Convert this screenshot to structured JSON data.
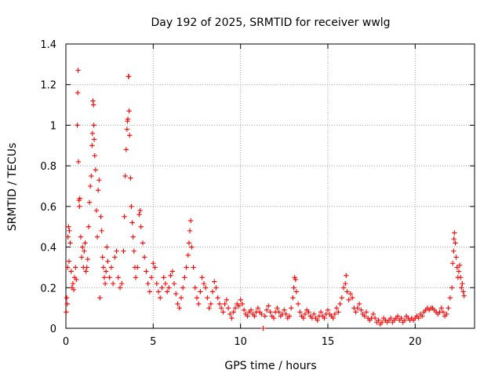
{
  "chart_data": {
    "type": "scatter",
    "title": "Day 192 of 2025, SRMTID for receiver wwlg",
    "xlabel": "GPS time / hours",
    "ylabel": "SRMTID / TECUs",
    "xlim": [
      0,
      23.4
    ],
    "ylim": [
      0,
      1.4
    ],
    "xticks": [
      0,
      5,
      10,
      15,
      20
    ],
    "yticks": [
      0,
      0.2,
      0.4,
      0.6,
      0.8,
      1,
      1.2,
      1.4
    ],
    "xtick_labels": [
      "0",
      "5",
      "10",
      "15",
      "20"
    ],
    "ytick_labels": [
      "0",
      "0.2",
      "0.4",
      "0.6",
      "0.8",
      "1",
      "1.2",
      "1.4"
    ],
    "grid": true,
    "marker": "+",
    "color": "#ff0000",
    "series": [
      {
        "name": "SRMTID",
        "points": [
          [
            0.02,
            0.08
          ],
          [
            0.05,
            0.15
          ],
          [
            0.08,
            0.12
          ],
          [
            0.1,
            0.3
          ],
          [
            0.12,
            0.45
          ],
          [
            0.15,
            0.5
          ],
          [
            0.18,
            0.33
          ],
          [
            0.2,
            0.48
          ],
          [
            0.25,
            0.42
          ],
          [
            0.3,
            0.28
          ],
          [
            0.35,
            0.2
          ],
          [
            0.4,
            0.22
          ],
          [
            0.45,
            0.19
          ],
          [
            0.5,
            0.25
          ],
          [
            0.55,
            0.3
          ],
          [
            0.6,
            0.24
          ],
          [
            0.65,
            1.0
          ],
          [
            0.68,
            1.16
          ],
          [
            0.7,
            1.27
          ],
          [
            0.72,
            0.82
          ],
          [
            0.75,
            0.63
          ],
          [
            0.78,
            0.6
          ],
          [
            0.8,
            0.64
          ],
          [
            0.85,
            0.45
          ],
          [
            0.9,
            0.35
          ],
          [
            0.95,
            0.4
          ],
          [
            1.0,
            0.3
          ],
          [
            1.05,
            0.38
          ],
          [
            1.1,
            0.42
          ],
          [
            1.15,
            0.28
          ],
          [
            1.2,
            0.3
          ],
          [
            1.25,
            0.34
          ],
          [
            1.3,
            0.5
          ],
          [
            1.35,
            0.62
          ],
          [
            1.4,
            0.7
          ],
          [
            1.45,
            0.75
          ],
          [
            1.5,
            0.9
          ],
          [
            1.52,
            0.96
          ],
          [
            1.55,
            1.12
          ],
          [
            1.58,
            1.1
          ],
          [
            1.6,
            1.0
          ],
          [
            1.62,
            0.93
          ],
          [
            1.65,
            0.85
          ],
          [
            1.7,
            0.78
          ],
          [
            1.75,
            0.58
          ],
          [
            1.8,
            0.45
          ],
          [
            1.85,
            0.68
          ],
          [
            1.9,
            0.73
          ],
          [
            1.95,
            0.15
          ],
          [
            2.0,
            0.55
          ],
          [
            2.05,
            0.48
          ],
          [
            2.1,
            0.35
          ],
          [
            2.15,
            0.3
          ],
          [
            2.2,
            0.25
          ],
          [
            2.25,
            0.22
          ],
          [
            2.3,
            0.28
          ],
          [
            2.35,
            0.4
          ],
          [
            2.4,
            0.33
          ],
          [
            2.5,
            0.25
          ],
          [
            2.6,
            0.3
          ],
          [
            2.7,
            0.22
          ],
          [
            2.8,
            0.35
          ],
          [
            2.9,
            0.38
          ],
          [
            3.0,
            0.25
          ],
          [
            3.1,
            0.2
          ],
          [
            3.2,
            0.22
          ],
          [
            3.3,
            0.38
          ],
          [
            3.35,
            0.55
          ],
          [
            3.4,
            0.75
          ],
          [
            3.45,
            0.88
          ],
          [
            3.5,
            0.98
          ],
          [
            3.52,
            1.02
          ],
          [
            3.55,
            1.03
          ],
          [
            3.58,
            1.24
          ],
          [
            3.6,
            1.24
          ],
          [
            3.62,
            1.07
          ],
          [
            3.65,
            0.95
          ],
          [
            3.7,
            0.74
          ],
          [
            3.75,
            0.6
          ],
          [
            3.8,
            0.52
          ],
          [
            3.85,
            0.45
          ],
          [
            3.9,
            0.38
          ],
          [
            3.95,
            0.3
          ],
          [
            4.0,
            0.25
          ],
          [
            4.1,
            0.3
          ],
          [
            4.2,
            0.56
          ],
          [
            4.25,
            0.58
          ],
          [
            4.3,
            0.5
          ],
          [
            4.4,
            0.42
          ],
          [
            4.5,
            0.35
          ],
          [
            4.6,
            0.28
          ],
          [
            4.7,
            0.22
          ],
          [
            4.8,
            0.18
          ],
          [
            4.9,
            0.25
          ],
          [
            5.0,
            0.32
          ],
          [
            5.1,
            0.3
          ],
          [
            5.2,
            0.22
          ],
          [
            5.3,
            0.18
          ],
          [
            5.4,
            0.15
          ],
          [
            5.5,
            0.2
          ],
          [
            5.6,
            0.25
          ],
          [
            5.7,
            0.22
          ],
          [
            5.8,
            0.18
          ],
          [
            5.9,
            0.2
          ],
          [
            6.0,
            0.26
          ],
          [
            6.1,
            0.28
          ],
          [
            6.2,
            0.22
          ],
          [
            6.3,
            0.17
          ],
          [
            6.4,
            0.12
          ],
          [
            6.5,
            0.1
          ],
          [
            6.6,
            0.15
          ],
          [
            6.7,
            0.2
          ],
          [
            6.8,
            0.25
          ],
          [
            6.9,
            0.3
          ],
          [
            7.0,
            0.36
          ],
          [
            7.05,
            0.42
          ],
          [
            7.1,
            0.48
          ],
          [
            7.15,
            0.53
          ],
          [
            7.2,
            0.4
          ],
          [
            7.3,
            0.3
          ],
          [
            7.4,
            0.2
          ],
          [
            7.5,
            0.15
          ],
          [
            7.6,
            0.12
          ],
          [
            7.7,
            0.18
          ],
          [
            7.8,
            0.25
          ],
          [
            7.9,
            0.22
          ],
          [
            8.0,
            0.2
          ],
          [
            8.1,
            0.15
          ],
          [
            8.2,
            0.1
          ],
          [
            8.3,
            0.12
          ],
          [
            8.4,
            0.18
          ],
          [
            8.5,
            0.23
          ],
          [
            8.6,
            0.2
          ],
          [
            8.7,
            0.15
          ],
          [
            8.8,
            0.12
          ],
          [
            8.9,
            0.1
          ],
          [
            9.0,
            0.08
          ],
          [
            9.1,
            0.12
          ],
          [
            9.2,
            0.14
          ],
          [
            9.3,
            0.1
          ],
          [
            9.4,
            0.07
          ],
          [
            9.5,
            0.05
          ],
          [
            9.6,
            0.08
          ],
          [
            9.7,
            0.1
          ],
          [
            9.8,
            0.12
          ],
          [
            9.9,
            0.11
          ],
          [
            10.0,
            0.14
          ],
          [
            10.1,
            0.12
          ],
          [
            10.2,
            0.09
          ],
          [
            10.3,
            0.07
          ],
          [
            10.4,
            0.06
          ],
          [
            10.5,
            0.08
          ],
          [
            10.6,
            0.09
          ],
          [
            10.7,
            0.07
          ],
          [
            10.8,
            0.06
          ],
          [
            10.9,
            0.08
          ],
          [
            11.0,
            0.1
          ],
          [
            11.1,
            0.08
          ],
          [
            11.2,
            0.07
          ],
          [
            11.3,
            0.0
          ],
          [
            11.4,
            0.06
          ],
          [
            11.5,
            0.09
          ],
          [
            11.6,
            0.11
          ],
          [
            11.7,
            0.08
          ],
          [
            11.8,
            0.06
          ],
          [
            11.9,
            0.05
          ],
          [
            12.0,
            0.08
          ],
          [
            12.1,
            0.1
          ],
          [
            12.2,
            0.08
          ],
          [
            12.3,
            0.06
          ],
          [
            12.4,
            0.07
          ],
          [
            12.5,
            0.09
          ],
          [
            12.6,
            0.07
          ],
          [
            12.7,
            0.05
          ],
          [
            12.8,
            0.06
          ],
          [
            12.9,
            0.1
          ],
          [
            13.0,
            0.15
          ],
          [
            13.05,
            0.2
          ],
          [
            13.1,
            0.25
          ],
          [
            13.15,
            0.24
          ],
          [
            13.2,
            0.18
          ],
          [
            13.3,
            0.12
          ],
          [
            13.4,
            0.08
          ],
          [
            13.5,
            0.06
          ],
          [
            13.6,
            0.05
          ],
          [
            13.7,
            0.07
          ],
          [
            13.8,
            0.09
          ],
          [
            13.9,
            0.08
          ],
          [
            14.0,
            0.06
          ],
          [
            14.1,
            0.05
          ],
          [
            14.2,
            0.07
          ],
          [
            14.3,
            0.05
          ],
          [
            14.4,
            0.04
          ],
          [
            14.5,
            0.06
          ],
          [
            14.6,
            0.08
          ],
          [
            14.7,
            0.06
          ],
          [
            14.8,
            0.05
          ],
          [
            14.9,
            0.07
          ],
          [
            15.0,
            0.09
          ],
          [
            15.1,
            0.07
          ],
          [
            15.2,
            0.06
          ],
          [
            15.3,
            0.05
          ],
          [
            15.4,
            0.07
          ],
          [
            15.5,
            0.1
          ],
          [
            15.6,
            0.08
          ],
          [
            15.7,
            0.12
          ],
          [
            15.8,
            0.15
          ],
          [
            15.9,
            0.2
          ],
          [
            16.0,
            0.22
          ],
          [
            16.05,
            0.26
          ],
          [
            16.1,
            0.18
          ],
          [
            16.2,
            0.14
          ],
          [
            16.3,
            0.17
          ],
          [
            16.4,
            0.15
          ],
          [
            16.5,
            0.1
          ],
          [
            16.6,
            0.08
          ],
          [
            16.7,
            0.1
          ],
          [
            16.8,
            0.12
          ],
          [
            16.9,
            0.09
          ],
          [
            17.0,
            0.07
          ],
          [
            17.1,
            0.06
          ],
          [
            17.2,
            0.08
          ],
          [
            17.3,
            0.05
          ],
          [
            17.4,
            0.04
          ],
          [
            17.5,
            0.05
          ],
          [
            17.6,
            0.07
          ],
          [
            17.7,
            0.05
          ],
          [
            17.8,
            0.03
          ],
          [
            17.9,
            0.04
          ],
          [
            18.0,
            0.02
          ],
          [
            18.1,
            0.03
          ],
          [
            18.2,
            0.05
          ],
          [
            18.3,
            0.04
          ],
          [
            18.4,
            0.03
          ],
          [
            18.5,
            0.04
          ],
          [
            18.6,
            0.05
          ],
          [
            18.7,
            0.03
          ],
          [
            18.8,
            0.04
          ],
          [
            18.9,
            0.05
          ],
          [
            19.0,
            0.06
          ],
          [
            19.1,
            0.04
          ],
          [
            19.2,
            0.05
          ],
          [
            19.3,
            0.03
          ],
          [
            19.4,
            0.04
          ],
          [
            19.5,
            0.06
          ],
          [
            19.6,
            0.05
          ],
          [
            19.7,
            0.04
          ],
          [
            19.8,
            0.05
          ],
          [
            19.9,
            0.04
          ],
          [
            20.0,
            0.05
          ],
          [
            20.1,
            0.06
          ],
          [
            20.2,
            0.05
          ],
          [
            20.3,
            0.07
          ],
          [
            20.4,
            0.06
          ],
          [
            20.5,
            0.08
          ],
          [
            20.6,
            0.09
          ],
          [
            20.7,
            0.1
          ],
          [
            20.8,
            0.09
          ],
          [
            20.9,
            0.1
          ],
          [
            21.0,
            0.1
          ],
          [
            21.1,
            0.09
          ],
          [
            21.2,
            0.08
          ],
          [
            21.3,
            0.07
          ],
          [
            21.4,
            0.08
          ],
          [
            21.5,
            0.1
          ],
          [
            21.6,
            0.08
          ],
          [
            21.7,
            0.06
          ],
          [
            21.8,
            0.07
          ],
          [
            21.9,
            0.1
          ],
          [
            22.0,
            0.15
          ],
          [
            22.1,
            0.2
          ],
          [
            22.15,
            0.32
          ],
          [
            22.2,
            0.38
          ],
          [
            22.22,
            0.44
          ],
          [
            22.25,
            0.47
          ],
          [
            22.3,
            0.42
          ],
          [
            22.35,
            0.35
          ],
          [
            22.4,
            0.3
          ],
          [
            22.45,
            0.25
          ],
          [
            22.5,
            0.28
          ],
          [
            22.55,
            0.31
          ],
          [
            22.6,
            0.25
          ],
          [
            22.65,
            0.2
          ],
          [
            22.7,
            0.22
          ],
          [
            22.75,
            0.18
          ],
          [
            22.8,
            0.16
          ]
        ]
      }
    ]
  }
}
